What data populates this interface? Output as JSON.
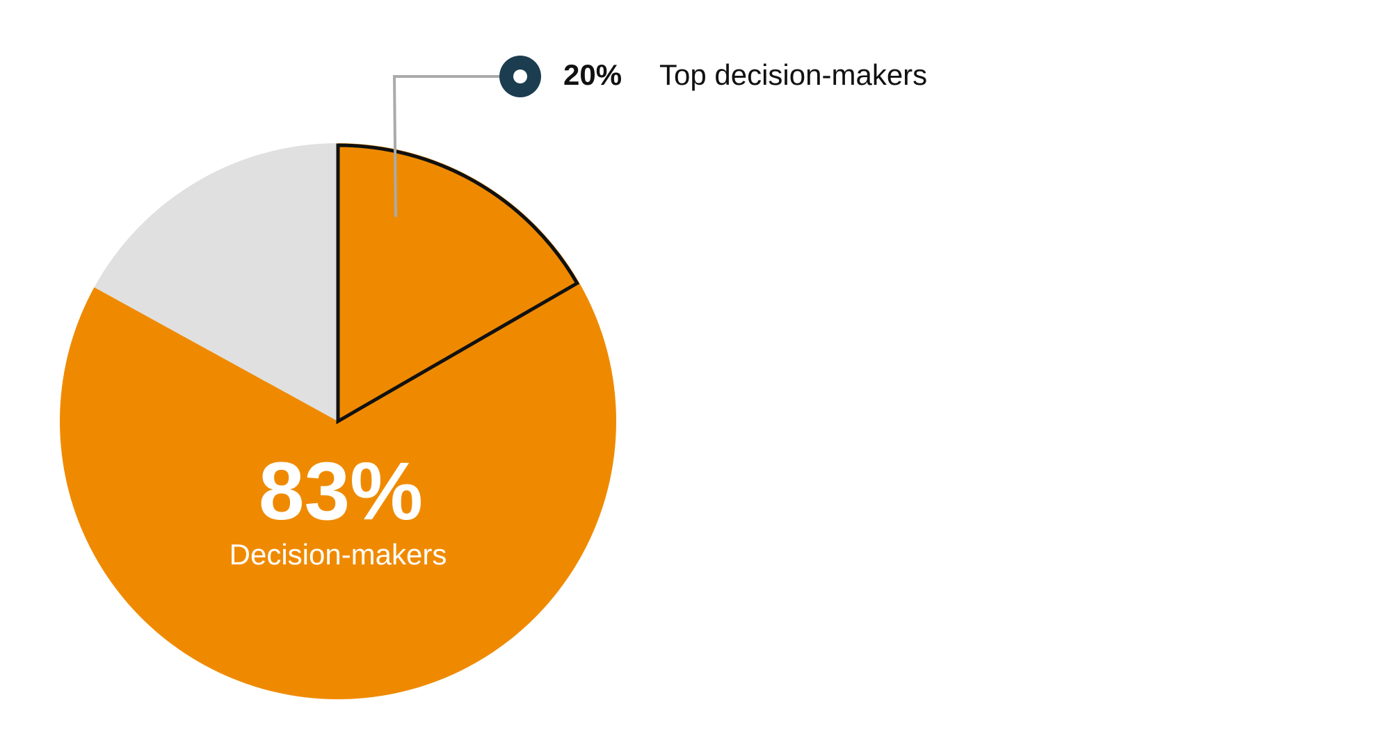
{
  "chart_data": {
    "type": "pie",
    "slices": [
      {
        "value": 83,
        "color": "#EF8A00"
      },
      {
        "value": 17,
        "color": "#E0E0E0"
      }
    ],
    "highlight": {
      "value": 20,
      "color": "#EF8A00",
      "outline": "#111111"
    },
    "main_label": {
      "value_text": "83%",
      "text": "Decision-makers"
    },
    "callout": {
      "value_text": "20%",
      "text": "Top decision-makers",
      "marker_color": "#1B3D4F",
      "leader_color": "#AAAAAA"
    }
  }
}
